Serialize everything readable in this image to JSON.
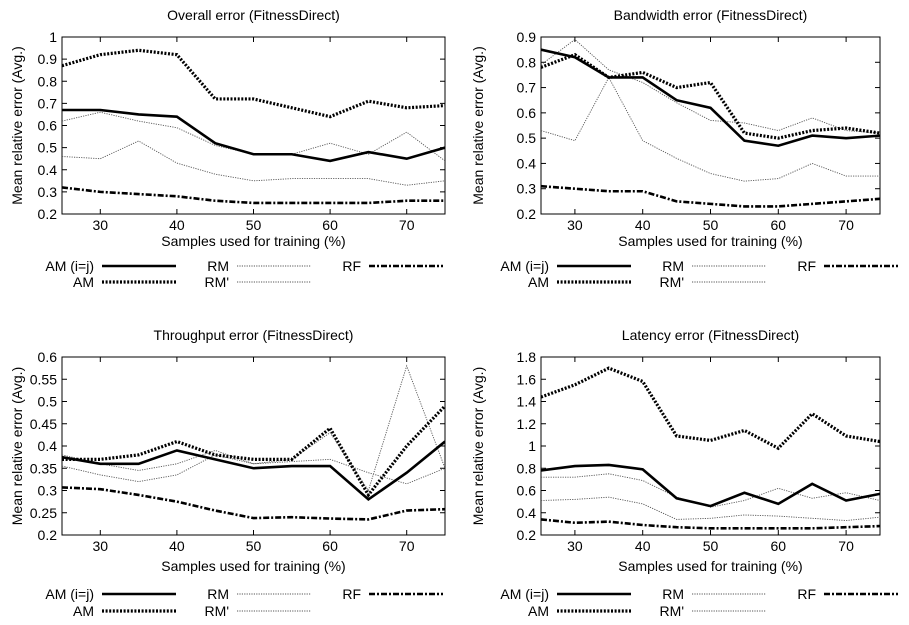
{
  "chart_data": [
    {
      "type": "line",
      "title": "Overall error (FitnessDirect)",
      "xlabel": "Samples used for training (%)",
      "ylabel": "Mean relative error (Avg.)",
      "xlim": [
        25,
        75
      ],
      "ylim": [
        0.2,
        1.0
      ],
      "xticks": [
        "30",
        "40",
        "50",
        "60",
        "70"
      ],
      "yticks": [
        "0.2",
        "0.3",
        "0.4",
        "0.5",
        "0.6",
        "0.7",
        "0.8",
        "0.9",
        "1"
      ],
      "grid": false,
      "legend_position": "below",
      "x": [
        25,
        30,
        35,
        40,
        45,
        50,
        55,
        60,
        65,
        70,
        75
      ],
      "series": [
        {
          "name": "AM (i=j)",
          "style": "thick-solid",
          "values": [
            0.67,
            0.67,
            0.65,
            0.64,
            0.52,
            0.47,
            0.47,
            0.44,
            0.48,
            0.45,
            0.5
          ]
        },
        {
          "name": "AM",
          "style": "thick-dotted",
          "values": [
            0.87,
            0.92,
            0.94,
            0.92,
            0.72,
            0.72,
            0.68,
            0.64,
            0.71,
            0.68,
            0.69
          ]
        },
        {
          "name": "RM",
          "style": "thin-dotted",
          "values": [
            0.62,
            0.66,
            0.62,
            0.59,
            0.51,
            0.47,
            0.47,
            0.52,
            0.47,
            0.57,
            0.44
          ]
        },
        {
          "name": "RM'",
          "style": "thin-dotted",
          "values": [
            0.46,
            0.45,
            0.53,
            0.43,
            0.38,
            0.35,
            0.36,
            0.36,
            0.36,
            0.33,
            0.35
          ]
        },
        {
          "name": "RF",
          "style": "dash-dot",
          "values": [
            0.32,
            0.3,
            0.29,
            0.28,
            0.26,
            0.25,
            0.25,
            0.25,
            0.25,
            0.26,
            0.26
          ]
        }
      ]
    },
    {
      "type": "line",
      "title": "Bandwidth error (FitnessDirect)",
      "xlabel": "Samples used for training (%)",
      "ylabel": "Mean relative error (Avg.)",
      "xlim": [
        25,
        75
      ],
      "ylim": [
        0.2,
        0.9
      ],
      "xticks": [
        "30",
        "40",
        "50",
        "60",
        "70"
      ],
      "yticks": [
        "0.2",
        "0.3",
        "0.4",
        "0.5",
        "0.6",
        "0.7",
        "0.8",
        "0.9"
      ],
      "grid": false,
      "legend_position": "below",
      "x": [
        25,
        30,
        35,
        40,
        45,
        50,
        55,
        60,
        65,
        70,
        75
      ],
      "series": [
        {
          "name": "AM (i=j)",
          "style": "thick-solid",
          "values": [
            0.85,
            0.82,
            0.74,
            0.74,
            0.65,
            0.62,
            0.49,
            0.47,
            0.51,
            0.5,
            0.51
          ]
        },
        {
          "name": "AM",
          "style": "thick-dotted",
          "values": [
            0.78,
            0.83,
            0.74,
            0.76,
            0.7,
            0.72,
            0.52,
            0.5,
            0.53,
            0.54,
            0.52
          ]
        },
        {
          "name": "RM",
          "style": "thin-dotted",
          "values": [
            0.79,
            0.89,
            0.77,
            0.72,
            0.64,
            0.57,
            0.56,
            0.53,
            0.58,
            0.53,
            0.52
          ]
        },
        {
          "name": "RM'",
          "style": "thin-dotted",
          "values": [
            0.53,
            0.49,
            0.74,
            0.49,
            0.42,
            0.36,
            0.33,
            0.34,
            0.4,
            0.35,
            0.35
          ]
        },
        {
          "name": "RF",
          "style": "dash-dot",
          "values": [
            0.31,
            0.3,
            0.29,
            0.29,
            0.25,
            0.24,
            0.23,
            0.23,
            0.24,
            0.25,
            0.26
          ]
        }
      ]
    },
    {
      "type": "line",
      "title": "Throughput error (FitnessDirect)",
      "xlabel": "Samples used for training (%)",
      "ylabel": "Mean relative error (Avg.)",
      "xlim": [
        25,
        75
      ],
      "ylim": [
        0.2,
        0.6
      ],
      "xticks": [
        "30",
        "40",
        "50",
        "60",
        "70"
      ],
      "yticks": [
        "0.2",
        "0.25",
        "0.3",
        "0.35",
        "0.4",
        "0.45",
        "0.5",
        "0.55",
        "0.6"
      ],
      "grid": false,
      "legend_position": "below",
      "x": [
        25,
        30,
        35,
        40,
        45,
        50,
        55,
        60,
        65,
        70,
        75
      ],
      "series": [
        {
          "name": "AM (i=j)",
          "style": "thick-solid",
          "values": [
            0.375,
            0.36,
            0.36,
            0.39,
            0.37,
            0.35,
            0.355,
            0.355,
            0.28,
            0.34,
            0.41
          ]
        },
        {
          "name": "AM",
          "style": "thick-dotted",
          "values": [
            0.37,
            0.37,
            0.38,
            0.41,
            0.38,
            0.37,
            0.37,
            0.44,
            0.29,
            0.4,
            0.49
          ]
        },
        {
          "name": "RM",
          "style": "thin-dotted",
          "values": [
            0.38,
            0.36,
            0.345,
            0.36,
            0.39,
            0.36,
            0.37,
            0.43,
            0.3,
            0.58,
            0.35
          ]
        },
        {
          "name": "RM'",
          "style": "thin-dotted",
          "values": [
            0.355,
            0.335,
            0.32,
            0.335,
            0.38,
            0.36,
            0.365,
            0.37,
            0.34,
            0.315,
            0.35
          ]
        },
        {
          "name": "RF",
          "style": "dash-dot",
          "values": [
            0.307,
            0.303,
            0.29,
            0.275,
            0.255,
            0.238,
            0.24,
            0.237,
            0.235,
            0.255,
            0.258
          ]
        }
      ]
    },
    {
      "type": "line",
      "title": "Latency error (FitnessDirect)",
      "xlabel": "Samples used for training (%)",
      "ylabel": "Mean relative error (Avg.)",
      "xlim": [
        25,
        75
      ],
      "ylim": [
        0.2,
        1.8
      ],
      "xticks": [
        "30",
        "40",
        "50",
        "60",
        "70"
      ],
      "yticks": [
        "0.2",
        "0.4",
        "0.6",
        "0.8",
        "1",
        "1.2",
        "1.4",
        "1.6",
        "1.8"
      ],
      "grid": false,
      "legend_position": "below",
      "x": [
        25,
        30,
        35,
        40,
        45,
        50,
        55,
        60,
        65,
        70,
        75
      ],
      "series": [
        {
          "name": "AM (i=j)",
          "style": "thick-solid",
          "values": [
            0.78,
            0.82,
            0.83,
            0.79,
            0.53,
            0.46,
            0.58,
            0.48,
            0.66,
            0.51,
            0.57
          ]
        },
        {
          "name": "AM",
          "style": "thick-dotted",
          "values": [
            1.44,
            1.55,
            1.7,
            1.58,
            1.09,
            1.05,
            1.14,
            0.98,
            1.29,
            1.09,
            1.04
          ]
        },
        {
          "name": "RM",
          "style": "thin-dotted",
          "values": [
            0.72,
            0.72,
            0.75,
            0.69,
            0.54,
            0.45,
            0.51,
            0.62,
            0.53,
            0.58,
            0.51
          ]
        },
        {
          "name": "RM'",
          "style": "thin-dotted",
          "values": [
            0.51,
            0.52,
            0.54,
            0.48,
            0.34,
            0.35,
            0.38,
            0.37,
            0.35,
            0.33,
            0.36
          ]
        },
        {
          "name": "RF",
          "style": "dash-dot",
          "values": [
            0.34,
            0.31,
            0.32,
            0.29,
            0.27,
            0.26,
            0.26,
            0.26,
            0.26,
            0.27,
            0.28
          ]
        }
      ]
    }
  ],
  "legends": [
    [
      {
        "label": "AM (i=j)",
        "style": "thick-solid"
      },
      {
        "label": "AM",
        "style": "thick-dotted"
      },
      {
        "label": "RM",
        "style": "thin-dotted"
      },
      {
        "label": "RM'",
        "style": "thin-dotted"
      },
      {
        "label": "RF",
        "style": "dash-dot"
      }
    ],
    [
      {
        "label": "AM (i=j)",
        "style": "thick-solid"
      },
      {
        "label": "AM",
        "style": "thick-dotted"
      },
      {
        "label": "RM",
        "style": "thin-dotted"
      },
      {
        "label": "RM'",
        "style": "thin-dotted"
      },
      {
        "label": "RF",
        "style": "dash-dot"
      }
    ],
    [
      {
        "label": "AM (i=j)",
        "style": "thick-solid"
      },
      {
        "label": "AM",
        "style": "thick-dotted"
      },
      {
        "label": "RM",
        "style": "thin-dotted"
      },
      {
        "label": "RM'",
        "style": "thin-dotted"
      },
      {
        "label": "RF",
        "style": "dash-dot"
      }
    ],
    [
      {
        "label": "AM (i=j)",
        "style": "thick-solid"
      },
      {
        "label": "AM",
        "style": "thick-dotted"
      },
      {
        "label": "RM",
        "style": "thin-dotted"
      },
      {
        "label": "RM'",
        "style": "thin-dotted"
      },
      {
        "label": "RF",
        "style": "dash-dot"
      }
    ]
  ],
  "colors": {
    "ink": "#000000",
    "thin_line": "#555555",
    "background": "#ffffff"
  }
}
